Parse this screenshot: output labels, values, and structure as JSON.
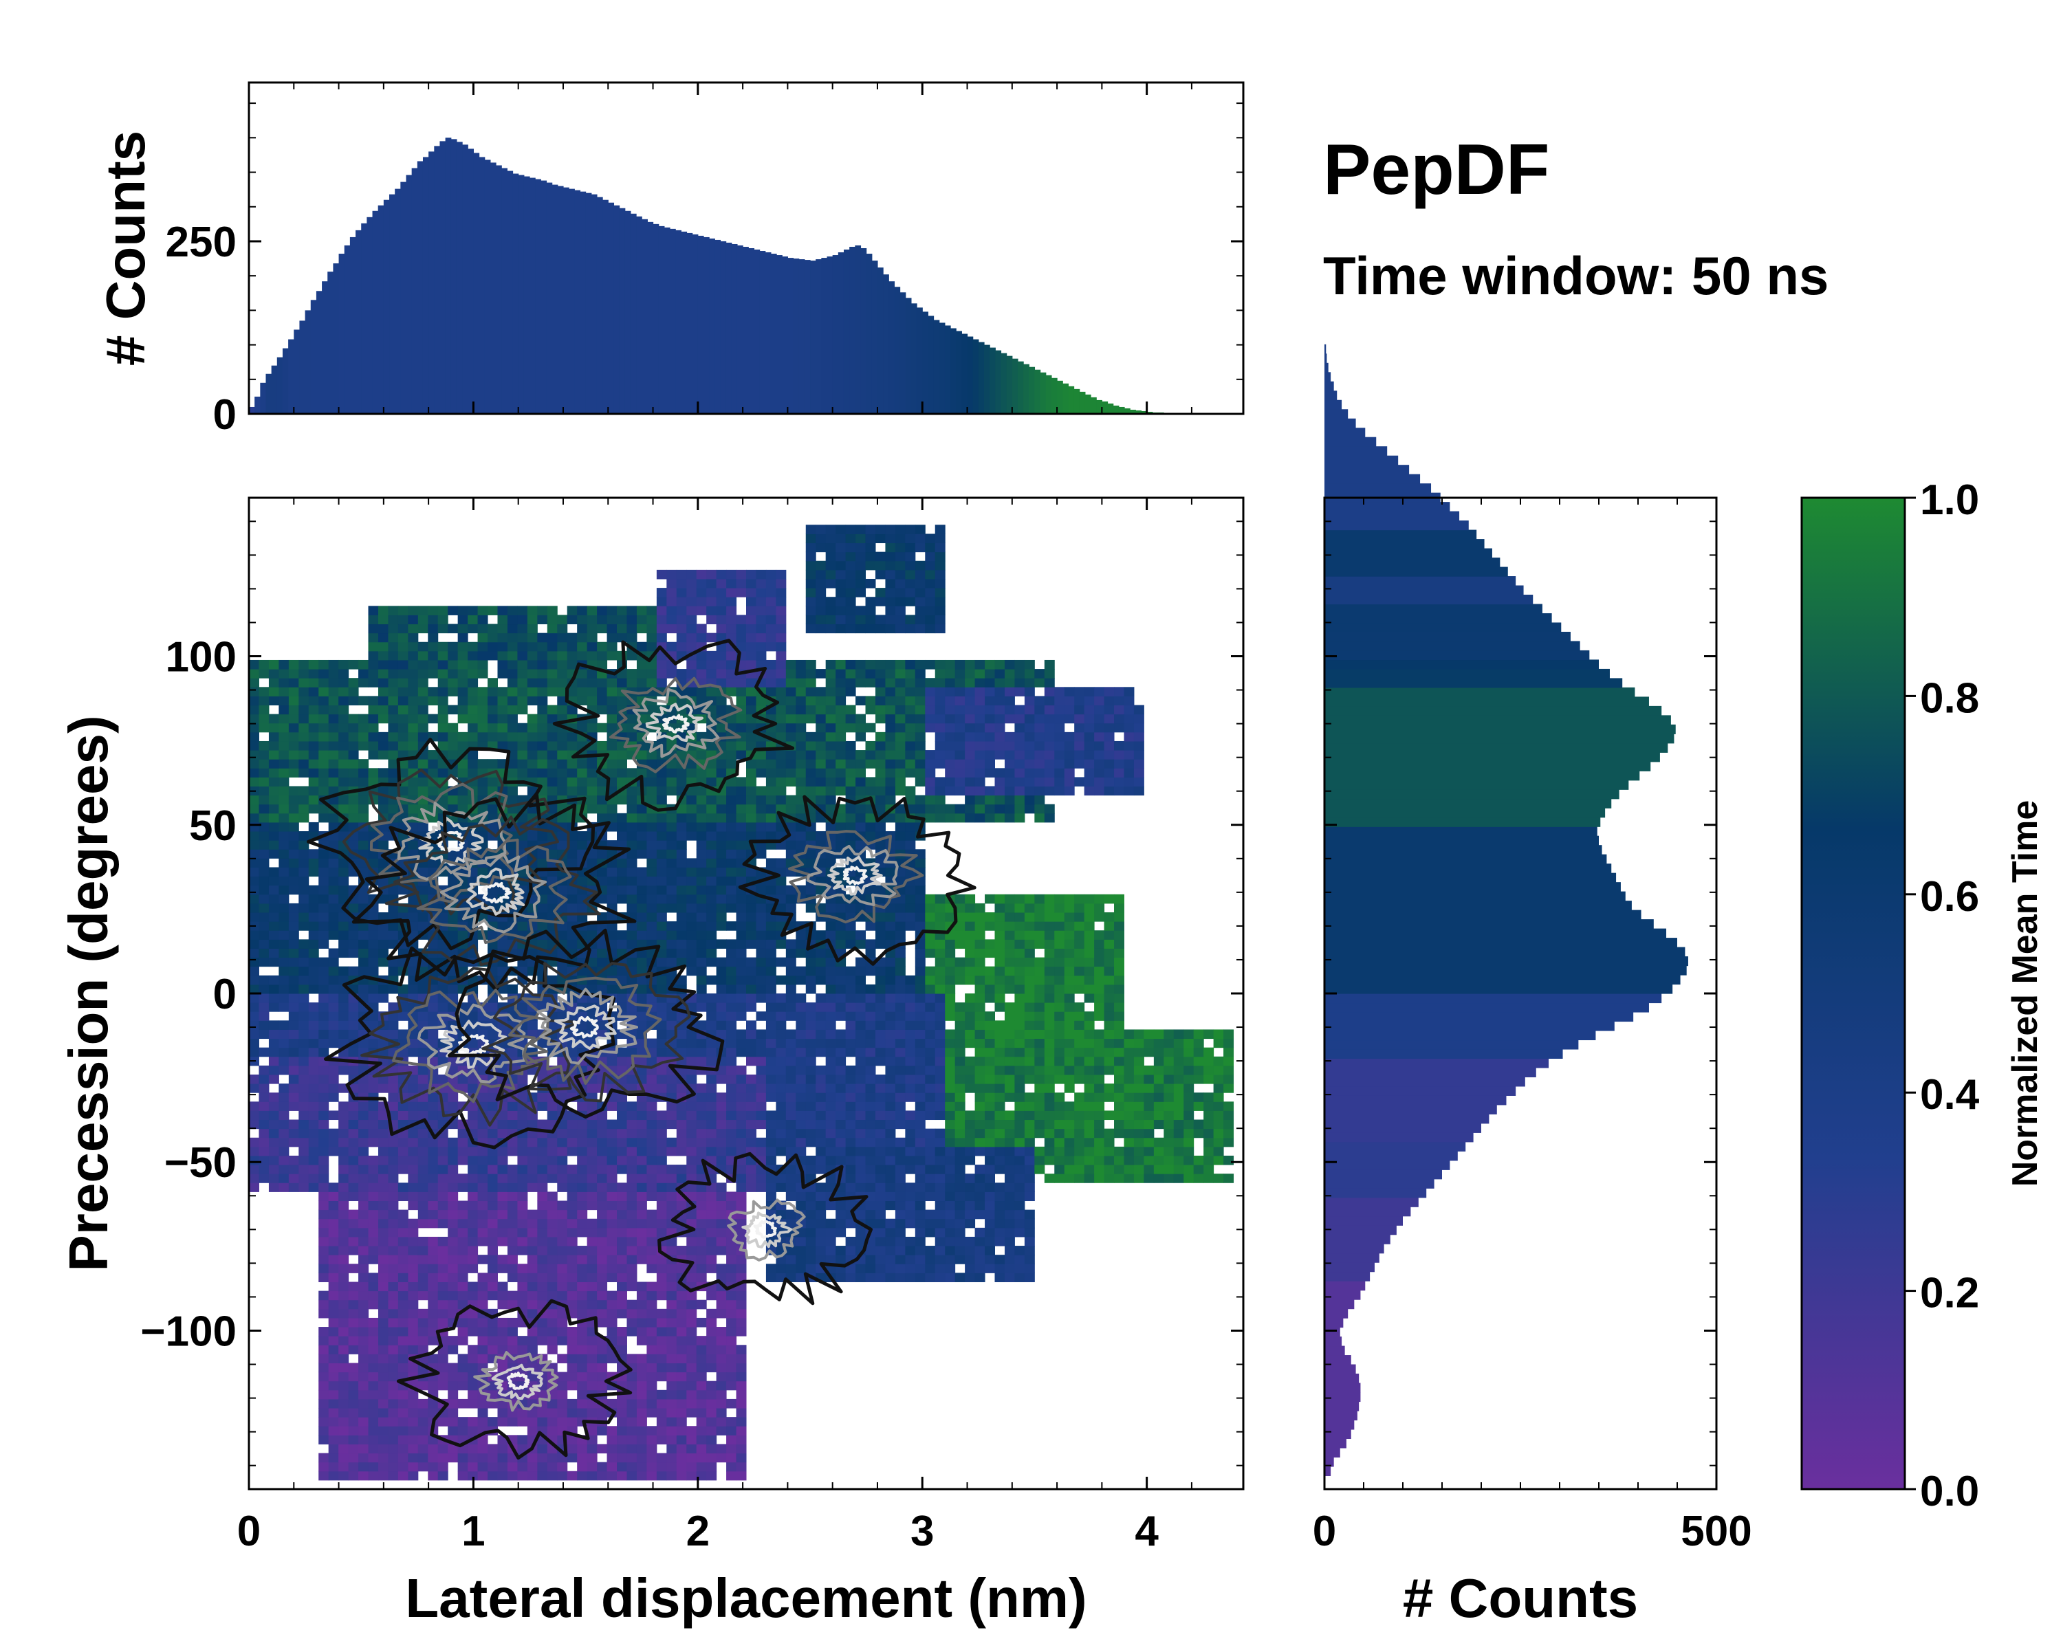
{
  "chart_data": [
    {
      "id": "top-histogram",
      "type": "bar",
      "ylabel": "# Counts",
      "xlim": [
        0,
        4.43
      ],
      "ylim": [
        0,
        480
      ],
      "yticks": [
        0,
        250
      ],
      "x_start": 0.0,
      "bin_width": 0.025,
      "counts": [
        10,
        25,
        45,
        58,
        70,
        82,
        95,
        108,
        122,
        135,
        150,
        165,
        178,
        192,
        206,
        218,
        232,
        244,
        256,
        266,
        276,
        285,
        294,
        302,
        310,
        318,
        326,
        336,
        346,
        356,
        366,
        372,
        380,
        388,
        395,
        400,
        398,
        394,
        390,
        384,
        378,
        372,
        368,
        364,
        360,
        356,
        352,
        348,
        346,
        344,
        342,
        340,
        338,
        335,
        332,
        330,
        328,
        326,
        324,
        322,
        320,
        318,
        314,
        310,
        306,
        302,
        298,
        294,
        290,
        286,
        282,
        278,
        275,
        272,
        270,
        268,
        266,
        264,
        262,
        260,
        258,
        256,
        254,
        252,
        250,
        248,
        246,
        244,
        242,
        240,
        238,
        236,
        234,
        232,
        230,
        228,
        226,
        225,
        224,
        223,
        222,
        224,
        226,
        228,
        230,
        234,
        238,
        242,
        244,
        240,
        232,
        222,
        212,
        202,
        192,
        184,
        176,
        168,
        160,
        154,
        148,
        142,
        136,
        132,
        128,
        124,
        120,
        116,
        112,
        108,
        104,
        100,
        96,
        92,
        88,
        84,
        80,
        76,
        72,
        68,
        64,
        60,
        56,
        52,
        48,
        44,
        40,
        36,
        32,
        28,
        24,
        20,
        18,
        15,
        12,
        10,
        8,
        6,
        5,
        4,
        3,
        2,
        2,
        1,
        1
      ],
      "mean_time": [
        0.3,
        0.35,
        0.4,
        0.45,
        0.45,
        0.44,
        0.42,
        0.4,
        0.4,
        0.4,
        0.4,
        0.39,
        0.39,
        0.39,
        0.39,
        0.39,
        0.38,
        0.38,
        0.38,
        0.38,
        0.38,
        0.38,
        0.38,
        0.38,
        0.38,
        0.38,
        0.38,
        0.38,
        0.38,
        0.38,
        0.38,
        0.38,
        0.38,
        0.38,
        0.38,
        0.38,
        0.38,
        0.38,
        0.38,
        0.38,
        0.38,
        0.38,
        0.38,
        0.38,
        0.38,
        0.38,
        0.38,
        0.38,
        0.38,
        0.38,
        0.38,
        0.38,
        0.38,
        0.38,
        0.38,
        0.38,
        0.38,
        0.38,
        0.38,
        0.38,
        0.38,
        0.38,
        0.38,
        0.38,
        0.38,
        0.38,
        0.38,
        0.38,
        0.38,
        0.38,
        0.38,
        0.38,
        0.38,
        0.38,
        0.38,
        0.38,
        0.38,
        0.38,
        0.38,
        0.38,
        0.38,
        0.38,
        0.38,
        0.38,
        0.38,
        0.38,
        0.38,
        0.38,
        0.38,
        0.38,
        0.38,
        0.38,
        0.38,
        0.39,
        0.39,
        0.39,
        0.39,
        0.4,
        0.4,
        0.4,
        0.41,
        0.41,
        0.42,
        0.42,
        0.43,
        0.43,
        0.44,
        0.44,
        0.45,
        0.45,
        0.46,
        0.46,
        0.47,
        0.47,
        0.48,
        0.49,
        0.5,
        0.51,
        0.52,
        0.53,
        0.54,
        0.55,
        0.56,
        0.57,
        0.58,
        0.6,
        0.62,
        0.64,
        0.66,
        0.68,
        0.7,
        0.72,
        0.74,
        0.76,
        0.78,
        0.8,
        0.82,
        0.84,
        0.86,
        0.88,
        0.9,
        0.92,
        0.94,
        0.95,
        0.96,
        0.97,
        0.98,
        0.98,
        0.98,
        0.98,
        0.98,
        0.98,
        0.98,
        0.98,
        0.98,
        0.98,
        0.98,
        0.98,
        0.98,
        0.98,
        0.98,
        0.98,
        0.98,
        0.98,
        0.98,
        0.98
      ]
    },
    {
      "id": "joint-heatmap",
      "type": "heatmap",
      "xlabel": "Lateral displacement (nm)",
      "ylabel": "Precession (degrees)",
      "xlim": [
        0,
        4.43
      ],
      "ylim": [
        -147,
        147
      ],
      "xticks": [
        0,
        1,
        2,
        3,
        4
      ],
      "yticks": [
        -100,
        -50,
        0,
        50,
        100
      ],
      "regions": [
        {
          "xmin": 0.0,
          "xmax": 3.6,
          "ymin": 50,
          "ymax": 100,
          "mean_time": 0.78
        },
        {
          "xmin": 0.55,
          "xmax": 2.3,
          "ymin": 95,
          "ymax": 115,
          "mean_time": 0.75
        },
        {
          "xmin": 1.8,
          "xmax": 2.4,
          "ymin": 90,
          "ymax": 125,
          "mean_time": 0.28
        },
        {
          "xmin": 2.5,
          "xmax": 3.1,
          "ymin": 108,
          "ymax": 138,
          "mean_time": 0.62
        },
        {
          "xmin": 3.0,
          "xmax": 4.0,
          "ymin": 60,
          "ymax": 90,
          "mean_time": 0.35
        },
        {
          "xmin": 0.0,
          "xmax": 3.0,
          "ymin": 0,
          "ymax": 50,
          "mean_time": 0.62
        },
        {
          "xmin": 3.0,
          "xmax": 3.9,
          "ymin": -10,
          "ymax": 30,
          "mean_time": 0.95
        },
        {
          "xmin": 3.1,
          "xmax": 4.4,
          "ymin": -55,
          "ymax": -10,
          "mean_time": 0.93
        },
        {
          "xmin": 0.0,
          "xmax": 3.1,
          "ymin": -50,
          "ymax": 0,
          "mean_time": 0.38
        },
        {
          "xmin": 0.0,
          "xmax": 2.3,
          "ymin": -60,
          "ymax": -20,
          "mean_time": 0.22
        },
        {
          "xmin": 2.3,
          "xmax": 3.5,
          "ymin": -85,
          "ymax": -45,
          "mean_time": 0.45
        },
        {
          "xmin": 0.3,
          "xmax": 2.2,
          "ymin": -145,
          "ymax": -60,
          "mean_time": 0.1
        }
      ],
      "density_peaks": [
        {
          "x": 0.9,
          "y": 45,
          "weight": 1.0
        },
        {
          "x": 1.1,
          "y": 30,
          "weight": 0.95
        },
        {
          "x": 1.0,
          "y": -15,
          "weight": 1.0
        },
        {
          "x": 1.5,
          "y": -10,
          "weight": 0.85
        },
        {
          "x": 1.9,
          "y": 80,
          "weight": 0.6
        },
        {
          "x": 2.7,
          "y": 35,
          "weight": 0.55
        },
        {
          "x": 1.2,
          "y": -115,
          "weight": 0.45
        },
        {
          "x": 2.3,
          "y": -70,
          "weight": 0.4
        }
      ]
    },
    {
      "id": "right-histogram",
      "type": "bar",
      "orientation": "horizontal",
      "xlabel": "# Counts",
      "xlim": [
        0,
        500
      ],
      "xticks": [
        0,
        500
      ],
      "ylim": [
        -147,
        147
      ],
      "y_start": -143,
      "bin_width": 2.75,
      "counts": [
        8,
        12,
        20,
        28,
        34,
        38,
        42,
        44,
        46,
        46,
        44,
        40,
        34,
        26,
        22,
        20,
        24,
        30,
        38,
        46,
        52,
        58,
        64,
        70,
        76,
        84,
        92,
        100,
        110,
        120,
        130,
        140,
        150,
        160,
        170,
        180,
        190,
        200,
        210,
        220,
        232,
        244,
        256,
        270,
        286,
        304,
        324,
        346,
        370,
        394,
        414,
        430,
        444,
        454,
        462,
        464,
        460,
        450,
        436,
        420,
        404,
        392,
        384,
        378,
        372,
        366,
        360,
        354,
        350,
        348,
        352,
        358,
        366,
        376,
        388,
        402,
        416,
        428,
        438,
        446,
        448,
        442,
        430,
        414,
        396,
        380,
        364,
        350,
        338,
        326,
        314,
        302,
        290,
        278,
        266,
        254,
        244,
        234,
        224,
        214,
        204,
        194,
        184,
        172,
        160,
        148,
        136,
        122,
        108,
        94,
        80,
        66,
        52,
        40,
        30,
        22,
        16,
        12,
        8,
        5,
        3,
        2
      ]
    },
    {
      "id": "colorbar",
      "type": "colorbar",
      "label": "Normalized Mean Time",
      "range": [
        0.0,
        1.0
      ],
      "ticks": [
        "0.0",
        "0.2",
        "0.4",
        "0.6",
        "0.8",
        "1.0"
      ],
      "colors": [
        "#6a2f9e",
        "#213f8e",
        "#063969",
        "#1e8a32"
      ]
    }
  ],
  "annotation": {
    "title": "PepDF",
    "subtitle": "Time window: 50 ns"
  }
}
